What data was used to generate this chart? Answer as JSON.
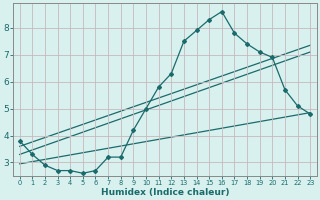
{
  "xlabel": "Humidex (Indice chaleur)",
  "bg_color": "#d8f0ee",
  "grid_color": "#c8b8bc",
  "line_color": "#1a6b6b",
  "spine_color": "#888888",
  "xlim": [
    -0.5,
    23.5
  ],
  "ylim": [
    2.5,
    8.9
  ],
  "xticks": [
    0,
    1,
    2,
    3,
    4,
    5,
    6,
    7,
    8,
    9,
    10,
    11,
    12,
    13,
    14,
    15,
    16,
    17,
    18,
    19,
    20,
    21,
    22,
    23
  ],
  "yticks": [
    3,
    4,
    5,
    6,
    7,
    8
  ],
  "curve1_x": [
    0,
    1,
    2,
    3,
    4,
    5,
    6,
    7,
    8,
    9,
    10,
    11,
    12,
    13,
    14,
    15,
    16,
    17,
    18,
    19,
    20,
    21,
    22,
    23
  ],
  "curve1_y": [
    3.8,
    3.3,
    2.9,
    2.7,
    2.7,
    2.6,
    2.7,
    3.2,
    3.2,
    4.2,
    5.0,
    5.8,
    6.3,
    7.5,
    7.9,
    8.3,
    8.6,
    7.8,
    7.4,
    7.1,
    6.9,
    5.7,
    5.1,
    4.8
  ],
  "line1_x": [
    0,
    23
  ],
  "line1_y": [
    3.3,
    7.1
  ],
  "line2_x": [
    0,
    23
  ],
  "line2_y": [
    3.6,
    7.35
  ],
  "line3_x": [
    0,
    23
  ],
  "line3_y": [
    2.95,
    4.85
  ]
}
